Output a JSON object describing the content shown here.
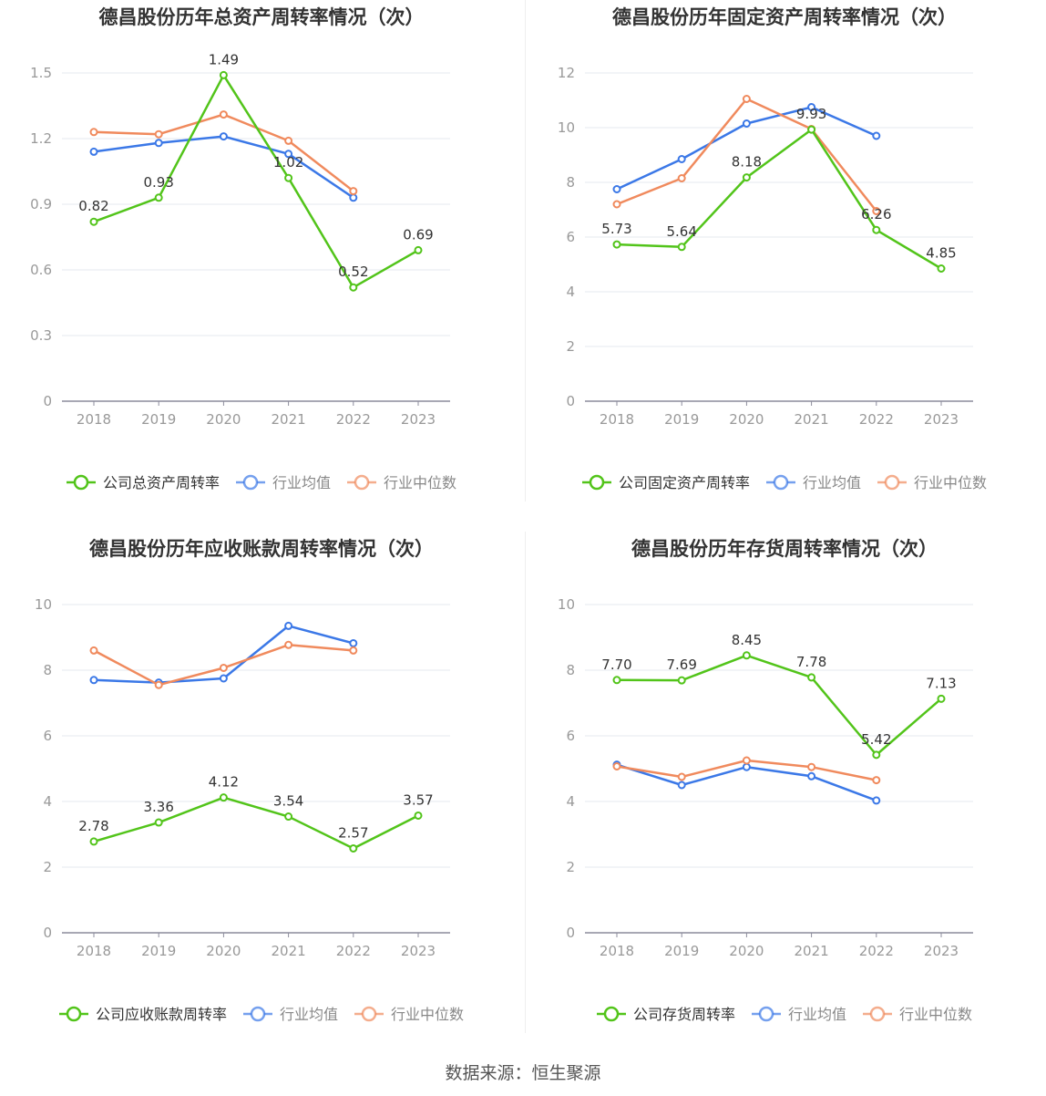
{
  "source": "数据来源：恒生聚源",
  "colors": {
    "company": "#52c41a",
    "avg": "#3b78e7",
    "median": "#f08a5d",
    "grid": "#e6e8ef",
    "axis": "#8c8c9c",
    "tick": "#999999",
    "title": "#333333"
  },
  "chart_data": [
    {
      "type": "line",
      "title": "德昌股份历年总资产周转率情况（次）",
      "categories": [
        "2018",
        "2019",
        "2020",
        "2021",
        "2022",
        "2023"
      ],
      "ylim": [
        0,
        1.5
      ],
      "yticks": [
        "0",
        "0.3",
        "0.6",
        "0.9",
        "1.2",
        "1.5"
      ],
      "grid": true,
      "legend_position": "bottom",
      "series": [
        {
          "name": "公司总资产周转率",
          "role": "company",
          "values": [
            0.82,
            0.93,
            1.49,
            1.02,
            0.52,
            0.69
          ],
          "labels": [
            "0.82",
            "0.93",
            "1.49",
            "1.02",
            "0.52",
            "0.69"
          ]
        },
        {
          "name": "行业均值",
          "role": "avg",
          "values": [
            1.14,
            1.18,
            1.21,
            1.13,
            0.93,
            null
          ]
        },
        {
          "name": "行业中位数",
          "role": "median",
          "values": [
            1.23,
            1.22,
            1.31,
            1.19,
            0.96,
            null
          ]
        }
      ]
    },
    {
      "type": "line",
      "title": "德昌股份历年固定资产周转率情况（次）",
      "categories": [
        "2018",
        "2019",
        "2020",
        "2021",
        "2022",
        "2023"
      ],
      "ylim": [
        0,
        12
      ],
      "yticks": [
        "0",
        "2",
        "4",
        "6",
        "8",
        "10",
        "12"
      ],
      "grid": true,
      "legend_position": "bottom",
      "series": [
        {
          "name": "公司固定资产周转率",
          "role": "company",
          "values": [
            5.73,
            5.64,
            8.18,
            9.93,
            6.26,
            4.85
          ],
          "labels": [
            "5.73",
            "5.64",
            "8.18",
            "9.93",
            "6.26",
            "4.85"
          ]
        },
        {
          "name": "行业均值",
          "role": "avg",
          "values": [
            7.75,
            8.85,
            10.15,
            10.75,
            9.7,
            null
          ]
        },
        {
          "name": "行业中位数",
          "role": "median",
          "values": [
            7.2,
            8.15,
            11.05,
            9.95,
            6.95,
            null
          ]
        }
      ]
    },
    {
      "type": "line",
      "title": "德昌股份历年应收账款周转率情况（次）",
      "categories": [
        "2018",
        "2019",
        "2020",
        "2021",
        "2022",
        "2023"
      ],
      "ylim": [
        0,
        10
      ],
      "yticks": [
        "0",
        "2",
        "4",
        "6",
        "8",
        "10"
      ],
      "grid": true,
      "legend_position": "bottom",
      "series": [
        {
          "name": "公司应收账款周转率",
          "role": "company",
          "values": [
            2.78,
            3.36,
            4.12,
            3.54,
            2.57,
            3.57
          ],
          "labels": [
            "2.78",
            "3.36",
            "4.12",
            "3.54",
            "2.57",
            "3.57"
          ]
        },
        {
          "name": "行业均值",
          "role": "avg",
          "values": [
            7.7,
            7.62,
            7.75,
            9.35,
            8.82,
            null
          ]
        },
        {
          "name": "行业中位数",
          "role": "median",
          "values": [
            8.6,
            7.55,
            8.07,
            8.77,
            8.6,
            null
          ]
        }
      ]
    },
    {
      "type": "line",
      "title": "德昌股份历年存货周转率情况（次）",
      "categories": [
        "2018",
        "2019",
        "2020",
        "2021",
        "2022",
        "2023"
      ],
      "ylim": [
        0,
        10
      ],
      "yticks": [
        "0",
        "2",
        "4",
        "6",
        "8",
        "10"
      ],
      "grid": true,
      "legend_position": "bottom",
      "series": [
        {
          "name": "公司存货周转率",
          "role": "company",
          "values": [
            7.7,
            7.69,
            8.45,
            7.78,
            5.42,
            7.13
          ],
          "labels": [
            "7.70",
            "7.69",
            "8.45",
            "7.78",
            "5.42",
            "7.13"
          ]
        },
        {
          "name": "行业均值",
          "role": "avg",
          "values": [
            5.12,
            4.5,
            5.05,
            4.77,
            4.03,
            null
          ]
        },
        {
          "name": "行业中位数",
          "role": "median",
          "values": [
            5.07,
            4.75,
            5.25,
            5.05,
            4.65,
            null
          ]
        }
      ]
    }
  ]
}
